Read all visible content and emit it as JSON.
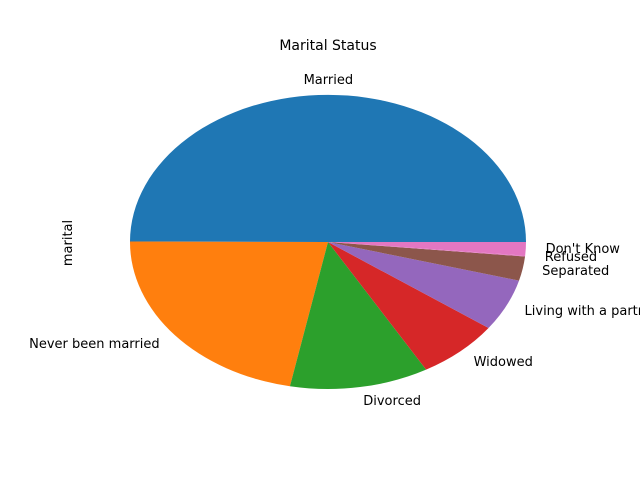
{
  "chart_data": {
    "type": "pie",
    "title": "Marital Status",
    "ylabel": "marital",
    "categories": [
      "Married",
      "Never been married",
      "Divorced",
      "Widowed",
      "Living with a partner",
      "Separated",
      "Refused",
      "Don't Know"
    ],
    "values": [
      50.7,
      22.3,
      11.5,
      6.9,
      5.8,
      2.7,
      0.1,
      1.5
    ],
    "colors": [
      "#1f77b4",
      "#ff7f0e",
      "#2ca02c",
      "#d62728",
      "#9467bd",
      "#8c564b",
      "#e377c2",
      "#e377c2"
    ],
    "start_angle": 0,
    "direction": "counterclockwise"
  }
}
